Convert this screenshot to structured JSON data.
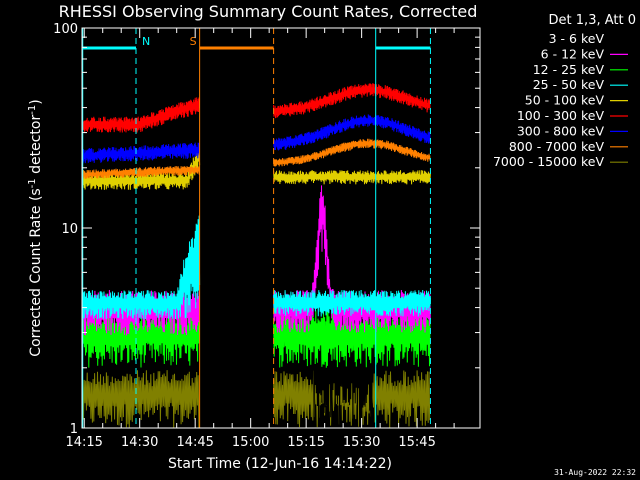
{
  "chart_data": {
    "type": "line",
    "title": "RHESSI Observing Summary Count Rates, Corrected",
    "xlabel": "Start Time (12-Jun-16 14:14:22)",
    "ylabel": "Corrected Count Rate (s",
    "ylabel_sup1": "-1",
    "ylabel_mid": " detector",
    "ylabel_sup2": "-1",
    "ylabel_end": ")",
    "yscale": "log",
    "ylim": [
      1,
      100
    ],
    "xlim_minutes": [
      854.4,
      962.0
    ],
    "xticks": [
      {
        "label": "14:15",
        "minute": 855
      },
      {
        "label": "14:30",
        "minute": 870
      },
      {
        "label": "14:45",
        "minute": 885
      },
      {
        "label": "15:00",
        "minute": 900
      },
      {
        "label": "15:15",
        "minute": 915
      },
      {
        "label": "15:30",
        "minute": 930
      },
      {
        "label": "15:45",
        "minute": 945
      }
    ],
    "yticks": [
      {
        "label": "1",
        "value": 1
      },
      {
        "label": "10",
        "value": 10
      },
      {
        "label": "100",
        "value": 100
      }
    ],
    "legend_title": "Det 1,3, Att 0",
    "legend_placement": "right",
    "series": [
      {
        "name": "3 - 6 keV",
        "color": "#000000"
      },
      {
        "name": "6 - 12 keV",
        "color": "#ff00ff"
      },
      {
        "name": "12 - 25 keV",
        "color": "#00ff00"
      },
      {
        "name": "25 - 50 keV",
        "color": "#00ffff"
      },
      {
        "name": "50 - 100 keV",
        "color": "#e0d000"
      },
      {
        "name": "100 - 300 keV",
        "color": "#ff0000"
      },
      {
        "name": "300 - 800 keV",
        "color": "#0000ff"
      },
      {
        "name": "800 - 7000 keV",
        "color": "#ff8000"
      },
      {
        "name": "7000 - 15000 keV",
        "color": "#808000"
      }
    ],
    "observing_periods": [
      {
        "segment": "before gap",
        "start_minute": 854.6,
        "end_minute": 886.2
      },
      {
        "segment": "after gap",
        "start_minute": 906.2,
        "end_minute": 948.6
      }
    ],
    "flags": [
      {
        "label": "N",
        "color": "#00ffff",
        "start_minute": 854.6,
        "end_minute": 869.0
      },
      {
        "label": "",
        "color": "#00ffff",
        "start_minute": 933.8,
        "end_minute": 948.6
      },
      {
        "label": "S",
        "color": "#ff8000",
        "start_minute": 886.2,
        "end_minute": 906.2
      }
    ],
    "footer_date": "31-Aug-2022 22:32"
  }
}
